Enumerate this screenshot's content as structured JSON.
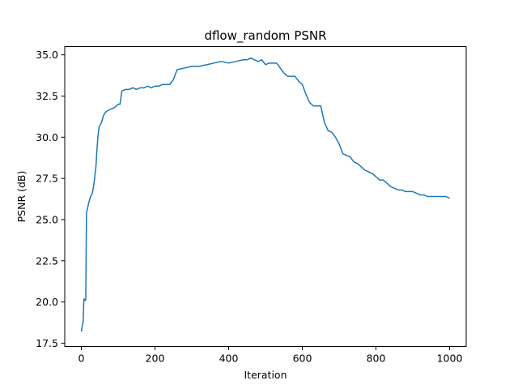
{
  "chart_data": {
    "type": "line",
    "title": "dflow_random PSNR",
    "xlabel": "Iteration",
    "ylabel": "PSNR (dB)",
    "xlim": [
      -45,
      1045
    ],
    "ylim": [
      17.3,
      35.5
    ],
    "x_ticks": [
      0,
      200,
      400,
      600,
      800,
      1000
    ],
    "x_tick_labels": [
      "0",
      "200",
      "400",
      "600",
      "800",
      "1000"
    ],
    "y_ticks": [
      17.5,
      20.0,
      22.5,
      25.0,
      27.5,
      30.0,
      32.5,
      35.0
    ],
    "y_tick_labels": [
      "17.5",
      "20.0",
      "22.5",
      "25.0",
      "27.5",
      "30.0",
      "32.5",
      "35.0"
    ],
    "grid": false,
    "line_color": "#1f77b4",
    "series": [
      {
        "x": [
          0,
          3,
          5,
          7,
          9,
          12,
          14,
          16,
          20,
          25,
          30,
          35,
          40,
          42,
          45,
          48,
          50,
          55,
          60,
          65,
          70,
          80,
          90,
          100,
          105,
          110,
          120,
          130,
          140,
          150,
          160,
          170,
          180,
          190,
          200,
          210,
          220,
          230,
          240,
          250,
          260,
          280,
          300,
          320,
          340,
          360,
          380,
          400,
          420,
          440,
          450,
          460,
          470,
          480,
          490,
          500,
          510,
          520,
          530,
          540,
          550,
          560,
          570,
          580,
          590,
          600,
          610,
          620,
          630,
          640,
          650,
          660,
          670,
          680,
          690,
          700,
          710,
          720,
          730,
          740,
          750,
          760,
          770,
          780,
          790,
          800,
          810,
          820,
          830,
          840,
          850,
          860,
          870,
          880,
          890,
          900,
          910,
          920,
          930,
          940,
          950,
          960,
          970,
          980,
          990,
          1000
        ],
        "y": [
          18.2,
          18.6,
          18.8,
          20.2,
          20.1,
          20.1,
          25.4,
          25.6,
          26.0,
          26.4,
          26.6,
          27.3,
          28.3,
          29.1,
          30.0,
          30.6,
          30.7,
          30.9,
          31.3,
          31.5,
          31.6,
          31.7,
          31.8,
          32.0,
          32.0,
          32.8,
          32.9,
          32.9,
          33.0,
          32.9,
          33.0,
          33.0,
          33.1,
          33.0,
          33.1,
          33.1,
          33.2,
          33.2,
          33.2,
          33.5,
          34.1,
          34.2,
          34.3,
          34.3,
          34.4,
          34.5,
          34.6,
          34.5,
          34.6,
          34.7,
          34.7,
          34.8,
          34.7,
          34.6,
          34.7,
          34.4,
          34.5,
          34.5,
          34.5,
          34.2,
          33.9,
          33.7,
          33.7,
          33.7,
          33.4,
          33.2,
          32.6,
          32.1,
          31.9,
          31.9,
          31.9,
          30.9,
          30.4,
          30.3,
          30.0,
          29.6,
          29.0,
          28.9,
          28.8,
          28.5,
          28.4,
          28.2,
          28.0,
          27.9,
          27.8,
          27.6,
          27.4,
          27.4,
          27.2,
          27.0,
          26.9,
          26.8,
          26.8,
          26.7,
          26.7,
          26.7,
          26.6,
          26.5,
          26.5,
          26.4,
          26.4,
          26.4,
          26.4,
          26.4,
          26.4,
          26.3
        ]
      }
    ]
  }
}
